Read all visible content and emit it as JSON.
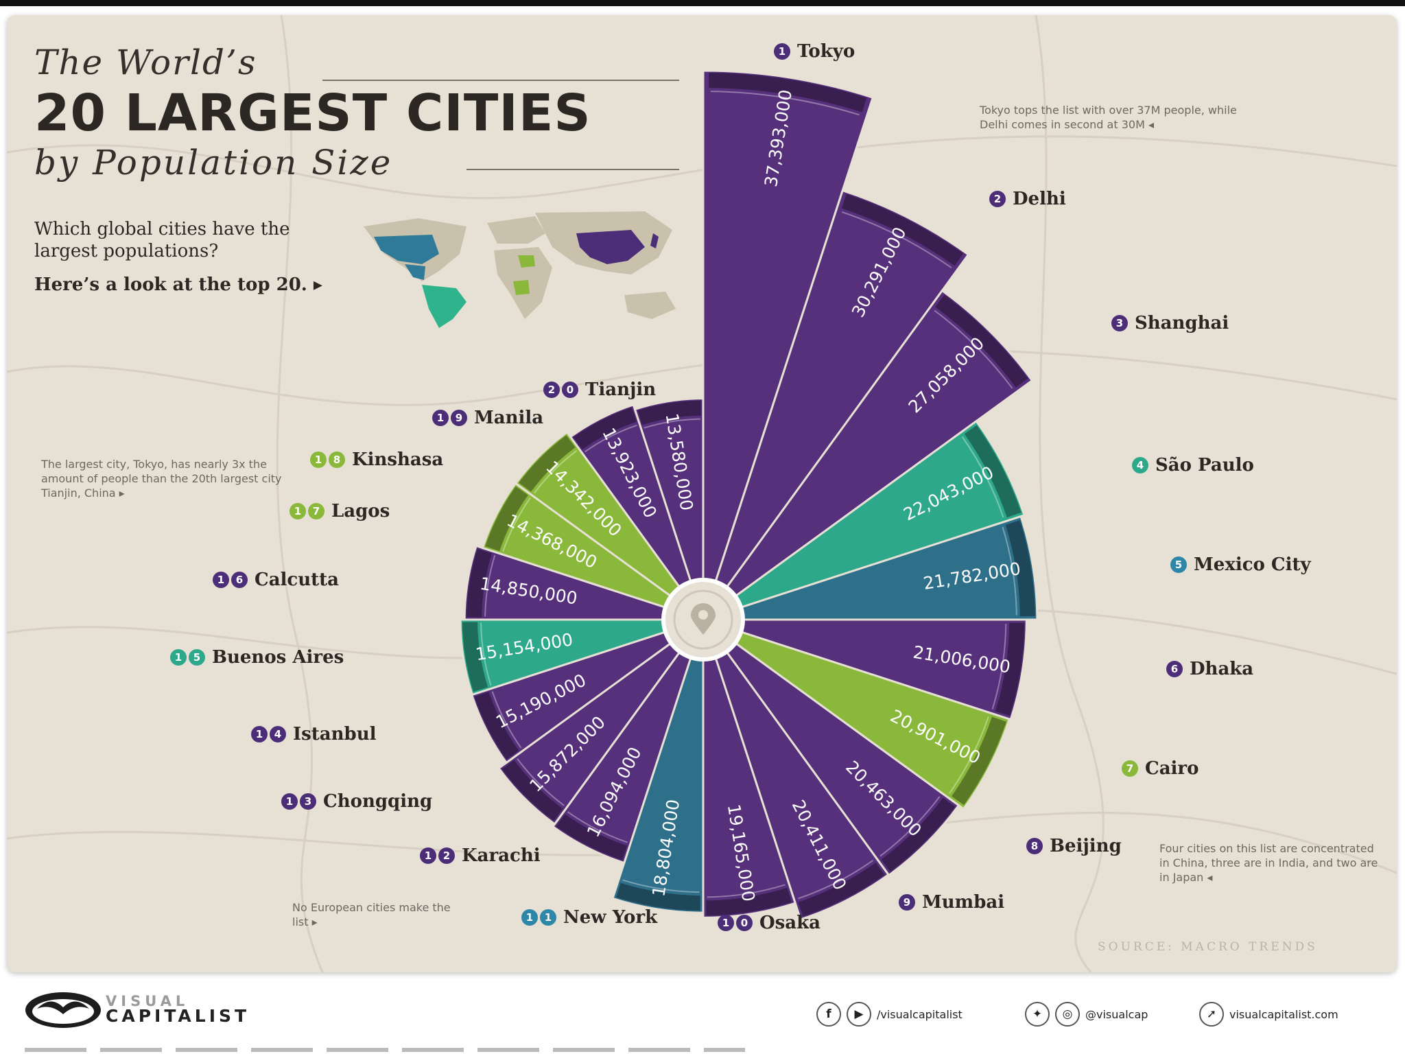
{
  "title": {
    "line1": "The World’s",
    "line2": "20 LARGEST CITIES",
    "line3": "by Population Size"
  },
  "intro": {
    "question": "Which global cities have the largest populations?",
    "look": "Here’s a look at the top 20. ▸"
  },
  "notes": {
    "tokyo": "Tokyo tops the list with over 37M people, while Delhi comes in second at 30M ◂",
    "ratio": "The largest city, Tokyo, has nearly 3x the amount of people than the 20th largest city Tianjin, China ▸",
    "europe": "No European cities make the list ▸",
    "countries": "Four cities on this list are concentrated in China, three are in India, and two are in Japan ◂"
  },
  "source": "SOURCE: MACRO TRENDS",
  "footer": {
    "logo_line1": "VISUAL",
    "logo_line2": "CAPITALIST",
    "handle1": "/visualcapitalist",
    "handle2": "@visualcap",
    "site": "visualcapitalist.com",
    "icons": [
      "facebook-icon",
      "youtube-icon",
      "twitter-icon",
      "instagram-icon",
      "cursor-icon"
    ]
  },
  "colors": {
    "purple": "#56307a",
    "dark_purple": "#3e2560",
    "teal": "#2ea88a",
    "blue": "#2e6f8a",
    "lime": "#8ab83a",
    "rank_purple": "#4b2d78",
    "rank_teal": "#2ea88a",
    "rank_lime": "#8ab83a",
    "rank_blue": "#2e86a8"
  },
  "chart_data": {
    "type": "bar",
    "layout": "radial",
    "title": "The World’s 20 Largest Cities by Population Size",
    "categories": [
      "Tokyo",
      "Delhi",
      "Shanghai",
      "São Paulo",
      "Mexico City",
      "Dhaka",
      "Cairo",
      "Beijing",
      "Mumbai",
      "Osaka",
      "New York",
      "Karachi",
      "Chongqing",
      "Istanbul",
      "Buenos Aires",
      "Calcutta",
      "Lagos",
      "Kinshasa",
      "Manila",
      "Tianjin"
    ],
    "ranks": [
      "1",
      "2",
      "3",
      "4",
      "5",
      "6",
      "7",
      "8",
      "9",
      "10",
      "11",
      "12",
      "13",
      "14",
      "15",
      "16",
      "17",
      "18",
      "19",
      "20"
    ],
    "values": [
      37393000,
      30291000,
      27058000,
      22043000,
      21782000,
      21006000,
      20901000,
      20463000,
      20411000,
      19165000,
      18804000,
      16094000,
      15872000,
      15190000,
      15154000,
      14850000,
      14368000,
      14342000,
      13923000,
      13580000
    ],
    "value_labels": [
      "37,393,000",
      "30,291,000",
      "27,058,000",
      "22,043,000",
      "21,782,000",
      "21,006,000",
      "20,901,000",
      "20,463,000",
      "20,411,000",
      "19,165,000",
      "18,804,000",
      "16,094,000",
      "15,872,000",
      "15,190,000",
      "15,154,000",
      "14,850,000",
      "14,368,000",
      "14,342,000",
      "13,923,000",
      "13,580,000"
    ],
    "region": [
      "asia",
      "asia",
      "asia",
      "south-america",
      "north-america",
      "asia",
      "africa",
      "asia",
      "asia",
      "asia",
      "north-america",
      "asia",
      "asia",
      "asia",
      "south-america",
      "asia",
      "africa",
      "africa",
      "asia",
      "asia"
    ],
    "region_colors": {
      "asia": "#56307a",
      "south-america": "#2ea88a",
      "north-america": "#2e6f8a",
      "africa": "#8ab83a"
    }
  }
}
